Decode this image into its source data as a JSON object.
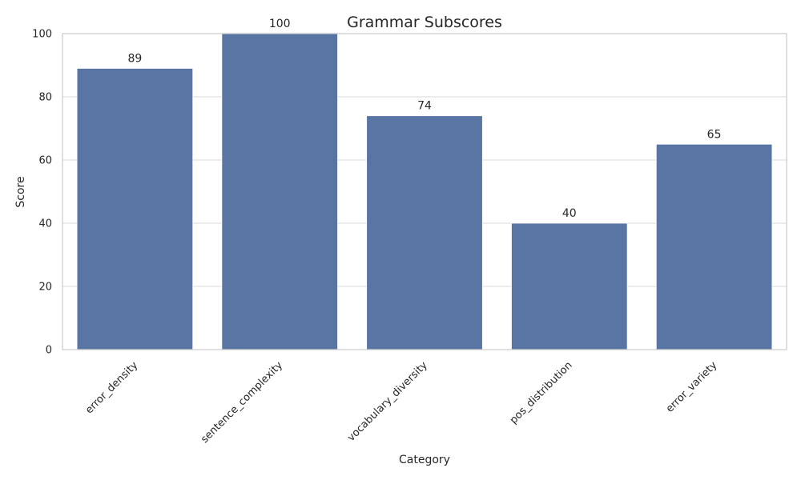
{
  "chart_data": {
    "type": "bar",
    "title": "Grammar Subscores",
    "xlabel": "Category",
    "ylabel": "Score",
    "categories": [
      "error_density",
      "sentence_complexity",
      "vocabulary_diversity",
      "pos_distribution",
      "error_variety"
    ],
    "values": [
      89,
      100,
      74,
      40,
      65
    ],
    "data_labels": [
      "89",
      "100",
      "74",
      "40",
      "65"
    ],
    "ylim": [
      0,
      100
    ],
    "yticks": [
      0,
      20,
      40,
      60,
      80,
      100
    ],
    "grid": true,
    "bar_color": "#5975a4",
    "background": "#ffffff"
  }
}
